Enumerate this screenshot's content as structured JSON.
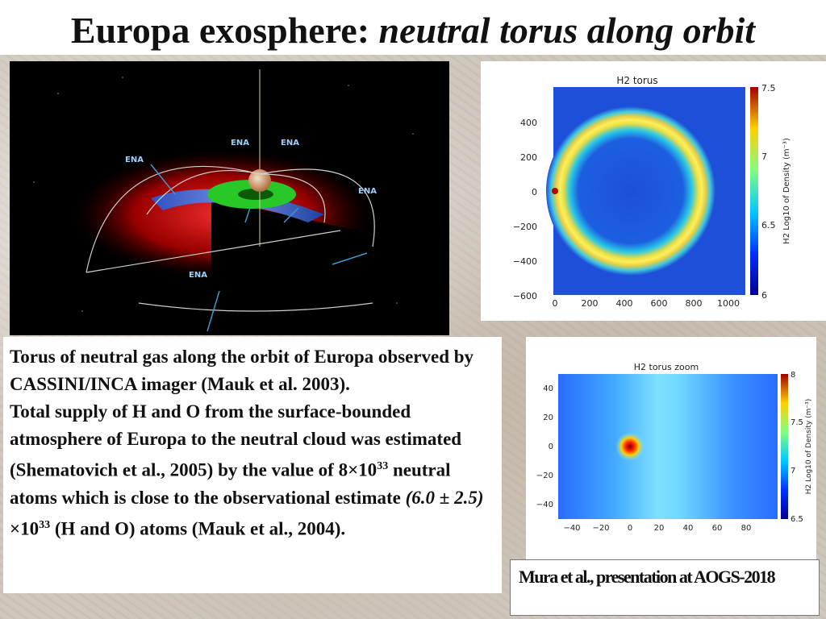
{
  "slide": {
    "title_main": "Europa exosphere:",
    "title_italic": "neutral torus along orbit"
  },
  "diagram": {
    "labels": [
      "ENA",
      "ENA",
      "ENA",
      "ENA",
      "ENA"
    ]
  },
  "torus_plot": {
    "title": "H2 torus",
    "x_ticks": [
      "0",
      "200",
      "400",
      "600",
      "800",
      "1000"
    ],
    "y_ticks": [
      "400",
      "200",
      "0",
      "−200",
      "−400",
      "−600"
    ],
    "cbar_ticks": [
      "7.5",
      "7",
      "6.5",
      "6"
    ],
    "cbar_label": "H2 Log10 of Density (m⁻³)"
  },
  "zoom_plot": {
    "title": "H2 torus zoom",
    "x_ticks": [
      "−40",
      "−20",
      "0",
      "20",
      "40",
      "60",
      "80"
    ],
    "y_ticks": [
      "40",
      "20",
      "0",
      "−20",
      "−40"
    ],
    "cbar_ticks": [
      "8",
      "7.5",
      "7",
      "6.5"
    ],
    "cbar_label": "H2 Log10 of Density (m⁻³)"
  },
  "body_text": {
    "line1": "Torus of neutral gas along the orbit of Europa observed by CASSINI/INCA imager  (Mauk et al. 2003).",
    "line2a": "Total supply of H and O from the surface-bounded atmosphere of Europa to the neutral cloud was estimated (Shematovich et al., 2005) by the value of 8×10",
    "exp1": "33",
    "line2b": " neutral atoms which is close to the observational estimate ",
    "estimate": "(6.0 ± 2.5)",
    "times": " ×10",
    "exp2": "33",
    "line2c": " (H and O) atoms (Mauk et al., 2004)."
  },
  "credit": "Mura et al., presentation at AOGS-2018"
}
